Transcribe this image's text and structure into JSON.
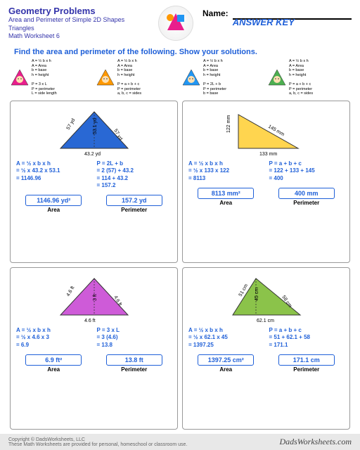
{
  "header": {
    "title": "Geometry Problems",
    "sub1": "Area and Perimeter of Simple 2D Shapes",
    "sub2": "Triangles",
    "sub3": "Math Worksheet 6",
    "logo": "GEOMETRY PROBLEMS",
    "name_label": "Name:",
    "answer_key": "ANSWER KEY"
  },
  "instruction": "Find the area and perimeter of the following.  Show your solutions.",
  "formulas": [
    {
      "tri_color": "#e91e8c",
      "area": "A = ½ b x h\nA = Area\nb = base\nh = height",
      "perim": "P = 3 x L\nP = perimeter\nL = side length"
    },
    {
      "tri_color": "#ff9800",
      "area": "A = ½ b x h\nA = Area\nb = base\nh = height",
      "perim": "P = a + b + c\nP = perimeter\na, b, c = sides"
    },
    {
      "tri_color": "#2196f3",
      "area": "A = ½ b x h\nA = Area\nb = base\nh = height",
      "perim": "P = 2L + b\nP = perimeter\nb = base"
    },
    {
      "tri_color": "#4caf50",
      "area": "A = ½ b x h\nA = Area\nb = base\nh = height",
      "perim": "P = a + b + c\nP = perimeter\na, b, c = sides"
    }
  ],
  "problems": [
    {
      "shape": {
        "type": "isosceles",
        "fill": "#2968d4",
        "labels": {
          "left": "57 yd",
          "right": "57 yd",
          "height": "53.1 yd",
          "base": "43.2 yd"
        }
      },
      "area_calc": "A = ½ x b x h\n  = ½ x 43.2 x 53.1\n  = 1146.96",
      "perim_calc": "P = 2L + b\n  = 2 (57) + 43.2\n  = 114 + 43.2\n  = 157.2",
      "area_ans": "1146.96 yd²",
      "perim_ans": "157.2 yd"
    },
    {
      "shape": {
        "type": "right",
        "fill": "#ffd54f",
        "labels": {
          "left": "122 mm",
          "hyp": "145 mm",
          "base": "133 mm"
        }
      },
      "area_calc": "A = ½ x b x h\n  = ½ x 133 x 122\n  = 8113",
      "perim_calc": "P = a + b + c\n  = 122 + 133 + 145\n  = 400",
      "area_ans": "8113 mm²",
      "perim_ans": "400 mm"
    },
    {
      "shape": {
        "type": "equilateral",
        "fill": "#ce5bd8",
        "labels": {
          "left": "4.6 ft",
          "right": "4.6 ft",
          "height": "3 ft",
          "base": "4.6 ft"
        }
      },
      "area_calc": "A = ½ x b x h\n  = ½ x 4.6 x 3\n  = 6.9",
      "perim_calc": "P = 3 x L\n  = 3 (4.6)\n  = 13.8",
      "area_ans": "6.9 ft²",
      "perim_ans": "13.8 ft"
    },
    {
      "shape": {
        "type": "scalene",
        "fill": "#8bc34a",
        "labels": {
          "left": "51 cm",
          "right": "58 cm",
          "height": "45 cm",
          "base": "62.1 cm"
        }
      },
      "area_calc": "A = ½ x b x h\n  = ½ x 62.1 x 45\n  = 1397.25",
      "perim_calc": "P = a + b + c\n  = 51 + 62.1 + 58\n  = 171.1",
      "area_ans": "1397.25 cm²",
      "perim_ans": "171.1 cm"
    }
  ],
  "labels": {
    "area": "Area",
    "perimeter": "Perimeter"
  },
  "footer": {
    "copyright": "Copyright © DadsWorksheets, LLC",
    "note": "These Math Worksheets are provided for personal, homeschool or classroom use.",
    "brand": "DadsWorksheets.com"
  }
}
